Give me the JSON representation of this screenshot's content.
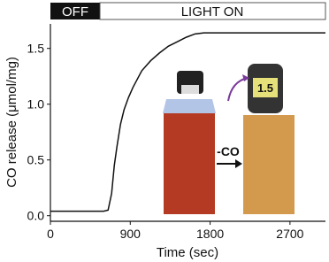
{
  "chart_data": {
    "type": "line",
    "phases": [
      "OFF",
      "LIGHT ON"
    ],
    "x_label": "Time (sec)",
    "y_label": "CO release (μmol/mg)",
    "annotations": [
      "-CO",
      "1.5"
    ],
    "xlim": [
      0,
      3100
    ],
    "xticks": [
      0,
      900,
      1800,
      2700
    ],
    "ylim": [
      -0.05,
      1.72
    ],
    "yticks": [
      {
        "value": 0,
        "label": "0.0"
      },
      0.5,
      {
        "value": 1,
        "label": "1.0"
      },
      1.5
    ],
    "series": [
      {
        "color": "#111111",
        "x": [
          0,
          300,
          600,
          650,
          690,
          720,
          750,
          790,
          830,
          880,
          930,
          1030,
          1130,
          1230,
          1330,
          1430,
          1530,
          1630,
          1730,
          2000,
          2400,
          2800,
          3100
        ],
        "values": [
          0.04,
          0.04,
          0.04,
          0.05,
          0.2,
          0.45,
          0.62,
          0.82,
          0.95,
          1.06,
          1.15,
          1.3,
          1.39,
          1.46,
          1.52,
          1.56,
          1.6,
          1.63,
          1.64,
          1.64,
          1.64,
          1.64,
          1.64
        ]
      }
    ]
  }
}
